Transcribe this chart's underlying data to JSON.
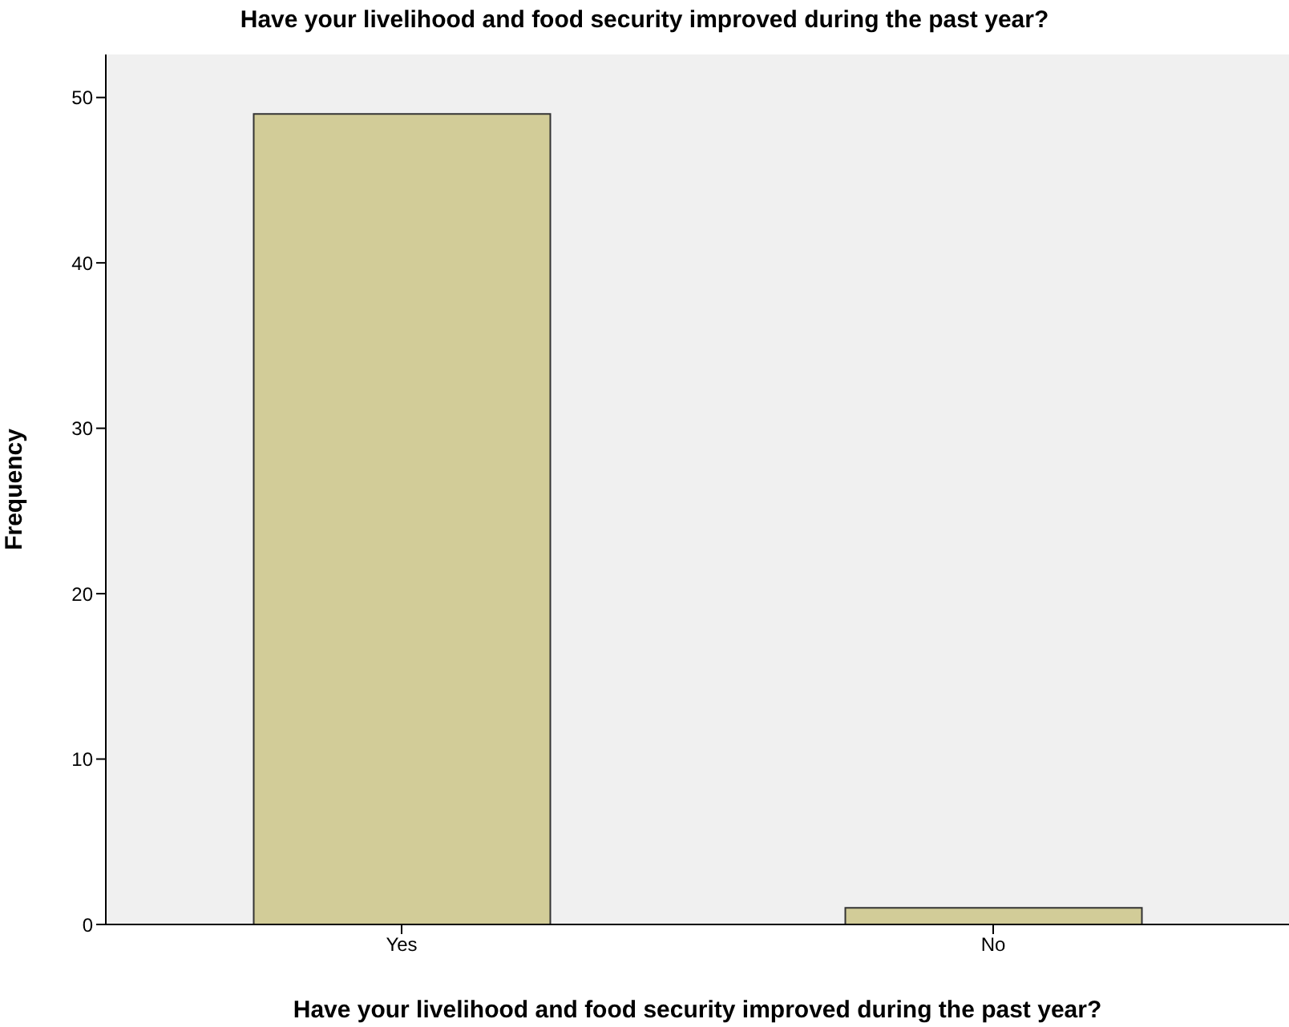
{
  "chart_data": {
    "type": "bar",
    "title": "Have your livelihood and food security improved during the past year?",
    "xlabel": "Have your livelihood and food security improved during the past year?",
    "ylabel": "Frequency",
    "categories": [
      "Yes",
      "No"
    ],
    "values": [
      49,
      1
    ],
    "color": "#d2cc98",
    "ylim": [
      0,
      52.6
    ],
    "yticks": [
      0,
      10,
      20,
      30,
      40,
      50
    ],
    "grid": false
  }
}
